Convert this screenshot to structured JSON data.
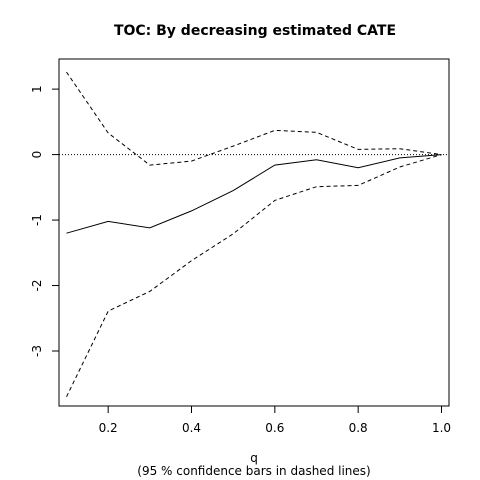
{
  "chart_data": {
    "type": "line",
    "title": "TOC: By decreasing estimated CATE",
    "xlabel": "q",
    "subtitle": "(95 % confidence bars in dashed lines)",
    "ylabel": "",
    "xlim": [
      0.082,
      1.018
    ],
    "ylim": [
      -3.84,
      1.46
    ],
    "x_ticks": [
      0.2,
      0.4,
      0.6,
      0.8,
      1.0
    ],
    "x_tick_labels": [
      "0.2",
      "0.4",
      "0.6",
      "0.8",
      "1.0"
    ],
    "y_ticks": [
      1,
      0,
      -1,
      -2,
      -3
    ],
    "y_tick_labels": [
      "1",
      "0",
      "-1",
      "-2",
      "-3"
    ],
    "reference_line_y": 0,
    "x": [
      0.1,
      0.2,
      0.3,
      0.4,
      0.5,
      0.6,
      0.7,
      0.8,
      0.9,
      1.0
    ],
    "series": [
      {
        "style": "solid",
        "values": [
          -1.2,
          -1.02,
          -1.12,
          -0.86,
          -0.55,
          -0.16,
          -0.08,
          -0.2,
          -0.05,
          0.0
        ]
      },
      {
        "style": "dashed",
        "values": [
          1.26,
          0.33,
          -0.16,
          -0.1,
          0.13,
          0.37,
          0.34,
          0.08,
          0.09,
          0.0
        ]
      },
      {
        "style": "dashed",
        "values": [
          -3.7,
          -2.39,
          -2.09,
          -1.62,
          -1.21,
          -0.7,
          -0.49,
          -0.47,
          -0.19,
          0.0
        ]
      }
    ]
  }
}
